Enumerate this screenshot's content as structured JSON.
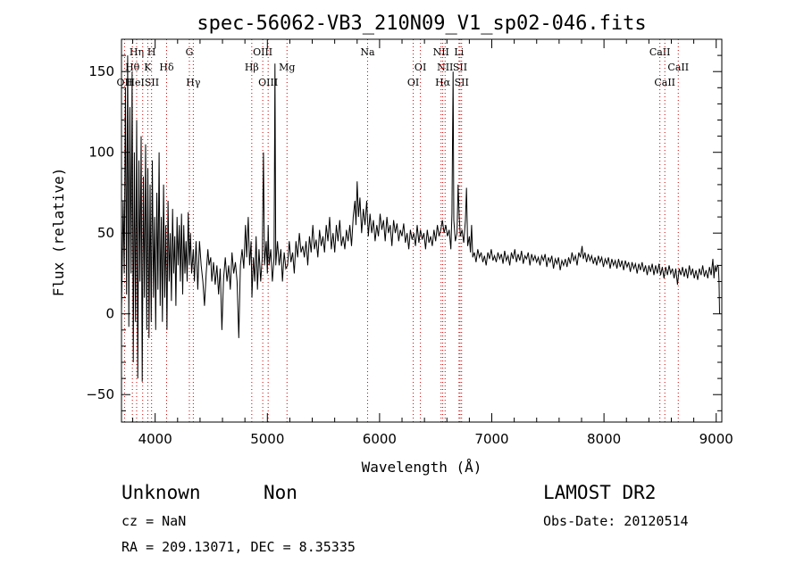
{
  "chart_data": {
    "type": "line",
    "title": "spec-56062-VB3_210N09_V1_sp02-046.fits",
    "xlabel": "Wavelength (Å)",
    "ylabel": "Flux (relative)",
    "xlim": [
      3700,
      9050
    ],
    "ylim": [
      -67,
      170
    ],
    "xticks": [
      4000,
      5000,
      6000,
      7000,
      8000,
      9000
    ],
    "yticks": [
      -50,
      0,
      50,
      100,
      150
    ],
    "grid": false,
    "line_color": "#000000",
    "marker_color": "#cc0000",
    "spectrum": [
      [
        3700,
        2
      ],
      [
        3715,
        70
      ],
      [
        3725,
        25
      ],
      [
        3735,
        140
      ],
      [
        3745,
        12
      ],
      [
        3755,
        160
      ],
      [
        3765,
        -8
      ],
      [
        3775,
        128
      ],
      [
        3785,
        25
      ],
      [
        3795,
        150
      ],
      [
        3805,
        -30
      ],
      [
        3815,
        100
      ],
      [
        3825,
        -5
      ],
      [
        3835,
        120
      ],
      [
        3845,
        -40
      ],
      [
        3855,
        95
      ],
      [
        3865,
        20
      ],
      [
        3875,
        110
      ],
      [
        3885,
        -42
      ],
      [
        3895,
        85
      ],
      [
        3905,
        10
      ],
      [
        3915,
        105
      ],
      [
        3925,
        -10
      ],
      [
        3935,
        90
      ],
      [
        3945,
        -15
      ],
      [
        3955,
        80
      ],
      [
        3965,
        -5
      ],
      [
        3975,
        95
      ],
      [
        3985,
        10
      ],
      [
        3995,
        60
      ],
      [
        4005,
        -10
      ],
      [
        4015,
        75
      ],
      [
        4025,
        15
      ],
      [
        4035,
        100
      ],
      [
        4045,
        5
      ],
      [
        4055,
        60
      ],
      [
        4065,
        -5
      ],
      [
        4075,
        80
      ],
      [
        4085,
        10
      ],
      [
        4095,
        55
      ],
      [
        4105,
        -10
      ],
      [
        4115,
        70
      ],
      [
        4125,
        20
      ],
      [
        4135,
        50
      ],
      [
        4145,
        8
      ],
      [
        4155,
        65
      ],
      [
        4165,
        25
      ],
      [
        4175,
        48
      ],
      [
        4185,
        5
      ],
      [
        4195,
        60
      ],
      [
        4205,
        30
      ],
      [
        4215,
        55
      ],
      [
        4225,
        20
      ],
      [
        4235,
        62
      ],
      [
        4245,
        12
      ],
      [
        4255,
        55
      ],
      [
        4265,
        25
      ],
      [
        4275,
        45
      ],
      [
        4285,
        20
      ],
      [
        4295,
        63
      ],
      [
        4305,
        30
      ],
      [
        4315,
        50
      ],
      [
        4325,
        25
      ],
      [
        4340,
        40
      ],
      [
        4350,
        20
      ],
      [
        4365,
        45
      ],
      [
        4380,
        15
      ],
      [
        4395,
        45
      ],
      [
        4410,
        30
      ],
      [
        4425,
        20
      ],
      [
        4440,
        5
      ],
      [
        4455,
        25
      ],
      [
        4470,
        40
      ],
      [
        4480,
        30
      ],
      [
        4495,
        35
      ],
      [
        4505,
        20
      ],
      [
        4520,
        32
      ],
      [
        4535,
        18
      ],
      [
        4550,
        30
      ],
      [
        4565,
        12
      ],
      [
        4580,
        28
      ],
      [
        4595,
        -10
      ],
      [
        4610,
        22
      ],
      [
        4625,
        35
      ],
      [
        4640,
        20
      ],
      [
        4655,
        30
      ],
      [
        4670,
        15
      ],
      [
        4685,
        38
      ],
      [
        4700,
        25
      ],
      [
        4715,
        32
      ],
      [
        4730,
        20
      ],
      [
        4745,
        -15
      ],
      [
        4760,
        30
      ],
      [
        4775,
        40
      ],
      [
        4790,
        28
      ],
      [
        4805,
        55
      ],
      [
        4815,
        35
      ],
      [
        4830,
        60
      ],
      [
        4842,
        30
      ],
      [
        4855,
        45
      ],
      [
        4862,
        10
      ],
      [
        4875,
        35
      ],
      [
        4888,
        20
      ],
      [
        4900,
        48
      ],
      [
        4912,
        15
      ],
      [
        4925,
        40
      ],
      [
        4940,
        20
      ],
      [
        4955,
        35
      ],
      [
        4965,
        100
      ],
      [
        4975,
        30
      ],
      [
        4990,
        45
      ],
      [
        5000,
        25
      ],
      [
        5007,
        55
      ],
      [
        5015,
        30
      ],
      [
        5030,
        40
      ],
      [
        5045,
        20
      ],
      [
        5060,
        35
      ],
      [
        5068,
        155
      ],
      [
        5075,
        30
      ],
      [
        5090,
        45
      ],
      [
        5105,
        30
      ],
      [
        5120,
        40
      ],
      [
        5135,
        20
      ],
      [
        5150,
        38
      ],
      [
        5165,
        28
      ],
      [
        5180,
        30
      ],
      [
        5195,
        45
      ],
      [
        5210,
        32
      ],
      [
        5225,
        38
      ],
      [
        5240,
        25
      ],
      [
        5255,
        45
      ],
      [
        5270,
        35
      ],
      [
        5285,
        50
      ],
      [
        5300,
        38
      ],
      [
        5315,
        42
      ],
      [
        5330,
        35
      ],
      [
        5345,
        45
      ],
      [
        5360,
        30
      ],
      [
        5375,
        48
      ],
      [
        5390,
        38
      ],
      [
        5405,
        55
      ],
      [
        5420,
        40
      ],
      [
        5435,
        46
      ],
      [
        5450,
        35
      ],
      [
        5465,
        52
      ],
      [
        5480,
        42
      ],
      [
        5495,
        48
      ],
      [
        5510,
        38
      ],
      [
        5525,
        55
      ],
      [
        5540,
        45
      ],
      [
        5555,
        60
      ],
      [
        5570,
        40
      ],
      [
        5585,
        50
      ],
      [
        5600,
        38
      ],
      [
        5615,
        55
      ],
      [
        5630,
        45
      ],
      [
        5645,
        58
      ],
      [
        5660,
        42
      ],
      [
        5675,
        48
      ],
      [
        5690,
        40
      ],
      [
        5705,
        52
      ],
      [
        5720,
        45
      ],
      [
        5735,
        55
      ],
      [
        5750,
        42
      ],
      [
        5765,
        60
      ],
      [
        5780,
        70
      ],
      [
        5790,
        55
      ],
      [
        5800,
        82
      ],
      [
        5812,
        60
      ],
      [
        5825,
        72
      ],
      [
        5840,
        50
      ],
      [
        5855,
        65
      ],
      [
        5870,
        55
      ],
      [
        5885,
        70
      ],
      [
        5900,
        48
      ],
      [
        5915,
        62
      ],
      [
        5930,
        50
      ],
      [
        5945,
        58
      ],
      [
        5960,
        45
      ],
      [
        5975,
        55
      ],
      [
        5990,
        48
      ],
      [
        6005,
        62
      ],
      [
        6020,
        52
      ],
      [
        6035,
        58
      ],
      [
        6050,
        45
      ],
      [
        6065,
        60
      ],
      [
        6080,
        50
      ],
      [
        6095,
        55
      ],
      [
        6110,
        42
      ],
      [
        6125,
        58
      ],
      [
        6140,
        50
      ],
      [
        6155,
        56
      ],
      [
        6170,
        45
      ],
      [
        6185,
        52
      ],
      [
        6200,
        48
      ],
      [
        6215,
        56
      ],
      [
        6230,
        44
      ],
      [
        6245,
        50
      ],
      [
        6260,
        40
      ],
      [
        6275,
        52
      ],
      [
        6290,
        46
      ],
      [
        6305,
        50
      ],
      [
        6320,
        42
      ],
      [
        6335,
        55
      ],
      [
        6350,
        44
      ],
      [
        6365,
        52
      ],
      [
        6380,
        46
      ],
      [
        6395,
        50
      ],
      [
        6410,
        40
      ],
      [
        6425,
        52
      ],
      [
        6440,
        44
      ],
      [
        6455,
        48
      ],
      [
        6470,
        42
      ],
      [
        6485,
        52
      ],
      [
        6500,
        45
      ],
      [
        6515,
        55
      ],
      [
        6530,
        48
      ],
      [
        6545,
        52
      ],
      [
        6560,
        58
      ],
      [
        6575,
        50
      ],
      [
        6590,
        55
      ],
      [
        6605,
        48
      ],
      [
        6620,
        52
      ],
      [
        6635,
        40
      ],
      [
        6645,
        62
      ],
      [
        6655,
        150
      ],
      [
        6662,
        58
      ],
      [
        6675,
        45
      ],
      [
        6690,
        50
      ],
      [
        6700,
        80
      ],
      [
        6710,
        60
      ],
      [
        6720,
        48
      ],
      [
        6735,
        52
      ],
      [
        6750,
        44
      ],
      [
        6765,
        58
      ],
      [
        6775,
        78
      ],
      [
        6785,
        42
      ],
      [
        6800,
        48
      ],
      [
        6810,
        38
      ],
      [
        6820,
        55
      ],
      [
        6830,
        35
      ],
      [
        6845,
        38
      ],
      [
        6860,
        32
      ],
      [
        6875,
        40
      ],
      [
        6890,
        35
      ],
      [
        6905,
        38
      ],
      [
        6920,
        32
      ],
      [
        6935,
        36
      ],
      [
        6950,
        30
      ],
      [
        6965,
        38
      ],
      [
        6980,
        34
      ],
      [
        6995,
        40
      ],
      [
        7010,
        33
      ],
      [
        7025,
        36
      ],
      [
        7040,
        32
      ],
      [
        7055,
        38
      ],
      [
        7070,
        34
      ],
      [
        7085,
        37
      ],
      [
        7100,
        31
      ],
      [
        7115,
        39
      ],
      [
        7130,
        33
      ],
      [
        7145,
        36
      ],
      [
        7160,
        30
      ],
      [
        7175,
        38
      ],
      [
        7190,
        34
      ],
      [
        7205,
        40
      ],
      [
        7220,
        32
      ],
      [
        7235,
        37
      ],
      [
        7250,
        33
      ],
      [
        7265,
        39
      ],
      [
        7280,
        31
      ],
      [
        7295,
        36
      ],
      [
        7310,
        34
      ],
      [
        7325,
        38
      ],
      [
        7340,
        30
      ],
      [
        7355,
        37
      ],
      [
        7370,
        33
      ],
      [
        7385,
        36
      ],
      [
        7400,
        32
      ],
      [
        7415,
        35
      ],
      [
        7430,
        30
      ],
      [
        7445,
        36
      ],
      [
        7460,
        33
      ],
      [
        7475,
        37
      ],
      [
        7490,
        29
      ],
      [
        7505,
        35
      ],
      [
        7520,
        32
      ],
      [
        7535,
        36
      ],
      [
        7550,
        28
      ],
      [
        7565,
        34
      ],
      [
        7580,
        31
      ],
      [
        7595,
        35
      ],
      [
        7610,
        27
      ],
      [
        7625,
        33
      ],
      [
        7640,
        30
      ],
      [
        7655,
        34
      ],
      [
        7670,
        29
      ],
      [
        7685,
        35
      ],
      [
        7700,
        31
      ],
      [
        7715,
        38
      ],
      [
        7730,
        33
      ],
      [
        7745,
        36
      ],
      [
        7760,
        30
      ],
      [
        7775,
        38
      ],
      [
        7790,
        35
      ],
      [
        7805,
        42
      ],
      [
        7815,
        34
      ],
      [
        7830,
        38
      ],
      [
        7845,
        32
      ],
      [
        7860,
        37
      ],
      [
        7875,
        33
      ],
      [
        7890,
        36
      ],
      [
        7905,
        31
      ],
      [
        7920,
        35
      ],
      [
        7935,
        30
      ],
      [
        7950,
        36
      ],
      [
        7965,
        32
      ],
      [
        7980,
        35
      ],
      [
        7995,
        29
      ],
      [
        8010,
        34
      ],
      [
        8025,
        31
      ],
      [
        8040,
        35
      ],
      [
        8055,
        28
      ],
      [
        8070,
        34
      ],
      [
        8085,
        30
      ],
      [
        8100,
        33
      ],
      [
        8115,
        28
      ],
      [
        8130,
        34
      ],
      [
        8145,
        29
      ],
      [
        8160,
        33
      ],
      [
        8175,
        27
      ],
      [
        8190,
        33
      ],
      [
        8205,
        29
      ],
      [
        8220,
        32
      ],
      [
        8235,
        26
      ],
      [
        8250,
        32
      ],
      [
        8265,
        28
      ],
      [
        8280,
        31
      ],
      [
        8295,
        25
      ],
      [
        8310,
        31
      ],
      [
        8325,
        27
      ],
      [
        8340,
        32
      ],
      [
        8355,
        26
      ],
      [
        8370,
        30
      ],
      [
        8385,
        24
      ],
      [
        8400,
        30
      ],
      [
        8415,
        26
      ],
      [
        8430,
        31
      ],
      [
        8445,
        24
      ],
      [
        8460,
        30
      ],
      [
        8475,
        25
      ],
      [
        8490,
        31
      ],
      [
        8505,
        24
      ],
      [
        8520,
        29
      ],
      [
        8535,
        22
      ],
      [
        8550,
        29
      ],
      [
        8565,
        24
      ],
      [
        8580,
        30
      ],
      [
        8595,
        25
      ],
      [
        8610,
        28
      ],
      [
        8625,
        22
      ],
      [
        8640,
        28
      ],
      [
        8655,
        18
      ],
      [
        8670,
        28
      ],
      [
        8685,
        24
      ],
      [
        8700,
        29
      ],
      [
        8715,
        23
      ],
      [
        8730,
        28
      ],
      [
        8745,
        22
      ],
      [
        8760,
        30
      ],
      [
        8775,
        24
      ],
      [
        8790,
        28
      ],
      [
        8805,
        22
      ],
      [
        8820,
        27
      ],
      [
        8835,
        21
      ],
      [
        8850,
        28
      ],
      [
        8865,
        24
      ],
      [
        8880,
        30
      ],
      [
        8895,
        23
      ],
      [
        8910,
        27
      ],
      [
        8925,
        22
      ],
      [
        8940,
        29
      ],
      [
        8955,
        24
      ],
      [
        8970,
        34
      ],
      [
        8980,
        22
      ],
      [
        8990,
        30
      ],
      [
        9000,
        26
      ],
      [
        9010,
        30
      ],
      [
        9020,
        29
      ],
      [
        9025,
        20
      ],
      [
        9030,
        0
      ]
    ],
    "lines": [
      {
        "label": "OII",
        "x": 3727,
        "row": 3
      },
      {
        "label": "Hη",
        "x": 3835,
        "row": 1
      },
      {
        "label": "Hθ",
        "x": 3797,
        "row": 2
      },
      {
        "label": "HeISII",
        "x": 3889,
        "row": 3
      },
      {
        "label": "H",
        "x": 3968,
        "row": 1
      },
      {
        "label": "K",
        "x": 3934,
        "row": 2
      },
      {
        "label": "Hδ",
        "x": 4102,
        "row": 2
      },
      {
        "label": "G",
        "x": 4305,
        "row": 1
      },
      {
        "label": "Hγ",
        "x": 4340,
        "row": 3
      },
      {
        "label": "OIII",
        "x": 4959,
        "row": 1
      },
      {
        "label": "Hβ",
        "x": 4861,
        "row": 2
      },
      {
        "label": "OIII",
        "x": 5007,
        "row": 3
      },
      {
        "label": "Mg",
        "x": 5175,
        "row": 2
      },
      {
        "label": "Na",
        "x": 5893,
        "row": 1
      },
      {
        "label": "OI",
        "x": 6300,
        "row": 3
      },
      {
        "label": "OI",
        "x": 6364,
        "row": 2
      },
      {
        "label": "NII",
        "x": 6548,
        "row": 1
      },
      {
        "label": "NII",
        "x": 6584,
        "row": 2
      },
      {
        "label": "Hα",
        "x": 6563,
        "row": 3
      },
      {
        "label": "Li",
        "x": 6708,
        "row": 1
      },
      {
        "label": "SII",
        "x": 6717,
        "row": 2
      },
      {
        "label": "SII",
        "x": 6731,
        "row": 3
      },
      {
        "label": "CaII",
        "x": 8498,
        "row": 1
      },
      {
        "label": "CaII",
        "x": 8542,
        "row": 3
      },
      {
        "label": "CaII",
        "x": 8662,
        "row": 2
      }
    ]
  },
  "info": {
    "class": "Unknown",
    "subclass": "Non",
    "survey": "LAMOST DR2",
    "cz": "cz = NaN",
    "obsdate": "Obs-Date: 20120514",
    "coords": "RA = 209.13071, DEC =   8.35335"
  }
}
